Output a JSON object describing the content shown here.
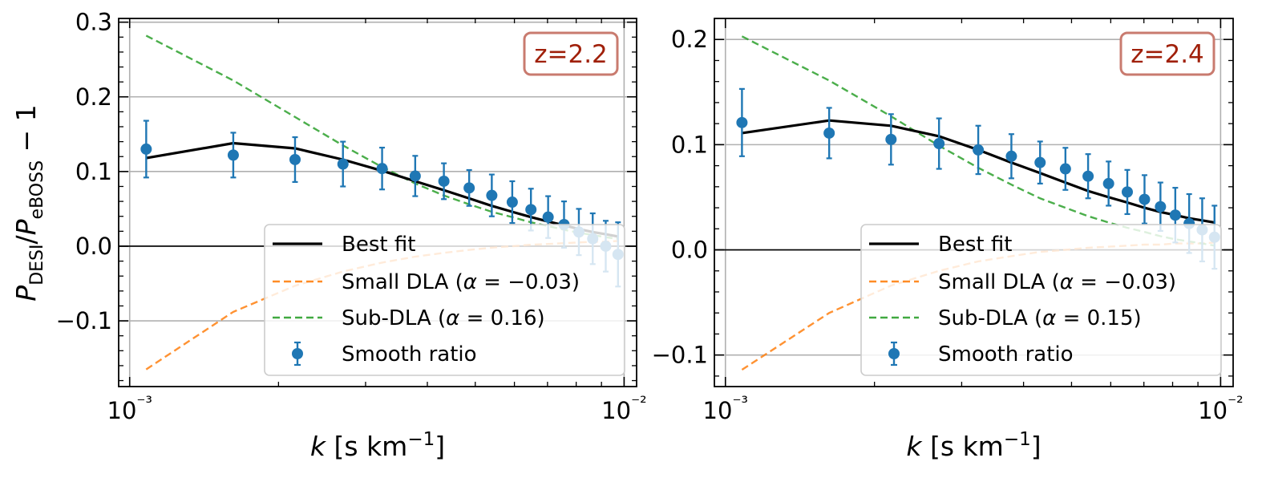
{
  "chart_data": [
    {
      "type": "line",
      "annotation": "z=2.2",
      "xlabel": "k [s km⁻¹]",
      "ylabel": "P_DESI/P_eBOSS − 1",
      "xscale": "log",
      "xlim": [
        0.00095,
        0.0106
      ],
      "ylim": [
        -0.188,
        0.305
      ],
      "yticks": [
        -0.1,
        0.0,
        0.1,
        0.2,
        0.3
      ],
      "ytick_labels": [
        "−0.1",
        "0.0",
        "0.1",
        "0.2",
        "0.3"
      ],
      "xtick_labels": [
        "10⁻³",
        "10⁻²"
      ],
      "grid": true,
      "legend_position": "lower-right",
      "series": [
        {
          "name": "Best fit",
          "style": "solid",
          "color": "#000000",
          "x": [
            0.00108,
            0.00162,
            0.00216,
            0.0027,
            0.00324,
            0.00378,
            0.00432,
            0.00486,
            0.0054,
            0.00594,
            0.00648,
            0.00702,
            0.00756,
            0.0081,
            0.00864,
            0.00918,
            0.00972
          ],
          "y": [
            0.118,
            0.138,
            0.131,
            0.116,
            0.101,
            0.087,
            0.075,
            0.064,
            0.054,
            0.046,
            0.039,
            0.033,
            0.028,
            0.023,
            0.019,
            0.016,
            0.013
          ]
        },
        {
          "name": "Small DLA (α = −0.03)",
          "style": "dashed",
          "color": "#ff7f0e",
          "x": [
            0.00108,
            0.00162,
            0.00216,
            0.0027,
            0.00324,
            0.00378,
            0.00432,
            0.00486,
            0.0054,
            0.00594,
            0.00648,
            0.00702,
            0.00756,
            0.0081,
            0.00864,
            0.00918,
            0.00972
          ],
          "y": [
            -0.165,
            -0.088,
            -0.053,
            -0.034,
            -0.022,
            -0.014,
            -0.009,
            -0.005,
            -0.002,
            0.0,
            0.002,
            0.003,
            0.004,
            0.005,
            0.006,
            0.006,
            0.007
          ]
        },
        {
          "name": "Sub-DLA (α = 0.16)",
          "style": "dashed",
          "color": "#2ca02c",
          "x": [
            0.00108,
            0.00162,
            0.00216,
            0.0027,
            0.00324,
            0.00378,
            0.00432,
            0.00486,
            0.0054,
            0.00594,
            0.00648,
            0.00702,
            0.00756,
            0.0081,
            0.00864,
            0.00918,
            0.00972
          ],
          "y": [
            0.282,
            0.222,
            0.173,
            0.135,
            0.106,
            0.084,
            0.068,
            0.056,
            0.046,
            0.039,
            0.032,
            0.027,
            0.022,
            0.018,
            0.015,
            0.012,
            0.01
          ]
        },
        {
          "name": "Smooth ratio",
          "style": "errorbar",
          "color": "#1f77b4",
          "x": [
            0.00108,
            0.00162,
            0.00216,
            0.0027,
            0.00324,
            0.00378,
            0.00432,
            0.00486,
            0.0054,
            0.00594,
            0.00648,
            0.00702,
            0.00756,
            0.0081,
            0.00864,
            0.00918,
            0.00972
          ],
          "y": [
            0.13,
            0.122,
            0.116,
            0.11,
            0.104,
            0.094,
            0.087,
            0.078,
            0.068,
            0.059,
            0.049,
            0.039,
            0.029,
            0.019,
            0.01,
            0.0,
            -0.011
          ],
          "err": [
            0.038,
            0.03,
            0.03,
            0.03,
            0.028,
            0.027,
            0.024,
            0.024,
            0.028,
            0.028,
            0.028,
            0.028,
            0.031,
            0.031,
            0.034,
            0.034,
            0.043
          ]
        }
      ]
    },
    {
      "type": "line",
      "annotation": "z=2.4",
      "xlabel": "k [s km⁻¹]",
      "xscale": "log",
      "xlim": [
        0.00095,
        0.0106
      ],
      "ylim": [
        -0.13,
        0.22
      ],
      "yticks": [
        -0.1,
        0.0,
        0.1,
        0.2
      ],
      "ytick_labels": [
        "−0.1",
        "0.0",
        "0.1",
        "0.2"
      ],
      "xtick_labels": [
        "10⁻³",
        "10⁻²"
      ],
      "grid": true,
      "legend_position": "lower-right",
      "series": [
        {
          "name": "Best fit",
          "style": "solid",
          "color": "#000000",
          "x": [
            0.00108,
            0.00162,
            0.00216,
            0.0027,
            0.00324,
            0.00378,
            0.00432,
            0.00486,
            0.0054,
            0.00594,
            0.00648,
            0.00702,
            0.00756,
            0.0081,
            0.00864,
            0.00918,
            0.00972
          ],
          "y": [
            0.111,
            0.123,
            0.118,
            0.108,
            0.095,
            0.083,
            0.073,
            0.064,
            0.056,
            0.05,
            0.045,
            0.04,
            0.036,
            0.033,
            0.03,
            0.028,
            0.026
          ]
        },
        {
          "name": "Small DLA (α = −0.03)",
          "style": "dashed",
          "color": "#ff7f0e",
          "x": [
            0.00108,
            0.00162,
            0.00216,
            0.0027,
            0.00324,
            0.00378,
            0.00432,
            0.00486,
            0.0054,
            0.00594,
            0.00648,
            0.00702,
            0.00756,
            0.0081,
            0.00864,
            0.00918,
            0.00972
          ],
          "y": [
            -0.114,
            -0.06,
            -0.034,
            -0.02,
            -0.011,
            -0.006,
            -0.002,
            0.0,
            0.002,
            0.003,
            0.004,
            0.005,
            0.005,
            0.006,
            0.006,
            0.006,
            0.007
          ]
        },
        {
          "name": "Sub-DLA (α = 0.15)",
          "style": "dashed",
          "color": "#2ca02c",
          "x": [
            0.00108,
            0.00162,
            0.00216,
            0.0027,
            0.00324,
            0.00378,
            0.00432,
            0.00486,
            0.0054,
            0.00594,
            0.00648,
            0.00702,
            0.00756,
            0.0081,
            0.00864,
            0.00918,
            0.00972
          ],
          "y": [
            0.203,
            0.161,
            0.127,
            0.099,
            0.078,
            0.062,
            0.049,
            0.04,
            0.032,
            0.026,
            0.021,
            0.017,
            0.013,
            0.01,
            0.008,
            0.006,
            0.004
          ]
        },
        {
          "name": "Smooth ratio",
          "style": "errorbar",
          "color": "#1f77b4",
          "x": [
            0.00108,
            0.00162,
            0.00216,
            0.0027,
            0.00324,
            0.00378,
            0.00432,
            0.00486,
            0.0054,
            0.00594,
            0.00648,
            0.00702,
            0.00756,
            0.0081,
            0.00864,
            0.00918,
            0.00972
          ],
          "y": [
            0.121,
            0.111,
            0.105,
            0.101,
            0.095,
            0.089,
            0.083,
            0.077,
            0.07,
            0.063,
            0.055,
            0.048,
            0.041,
            0.033,
            0.025,
            0.019,
            0.012
          ]
        },
        {
          "name": "_err",
          "err": [
            0.032,
            0.024,
            0.024,
            0.024,
            0.023,
            0.021,
            0.02,
            0.02,
            0.021,
            0.021,
            0.021,
            0.023,
            0.023,
            0.026,
            0.028,
            0.03,
            0.03
          ]
        }
      ]
    }
  ]
}
